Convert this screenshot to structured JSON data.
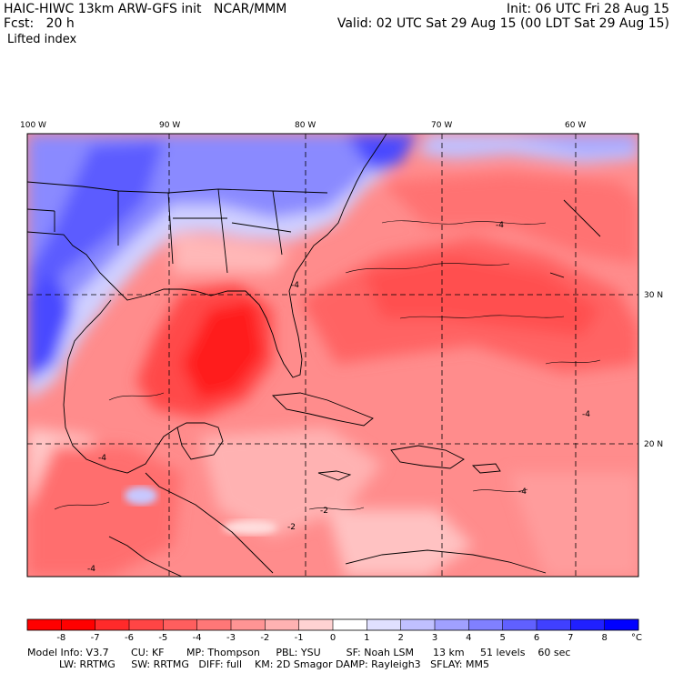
{
  "header": {
    "title": "HAIC-HIWC 13km ARW-GFS init   NCAR/MMM",
    "init": "Init: 06 UTC Fri 28 Aug 15",
    "forecast": "Fcst:   20 h",
    "valid": "Valid: 02 UTC Sat 29 Aug 15 (00 LDT Sat 29 Aug 15)",
    "field": "Lifted index"
  },
  "map": {
    "lon_labels": [
      "100 W",
      "90 W",
      "80 W",
      "70 W",
      "60 W"
    ],
    "lat_labels": [
      "30 N",
      "20 N"
    ],
    "contour_labels": [
      "-4",
      "-4",
      "-4",
      "-4",
      "-4",
      "-2",
      "-2",
      "-4"
    ]
  },
  "colorbar": {
    "ticks": [
      "-8",
      "-7",
      "-6",
      "-5",
      "-4",
      "-3",
      "-2",
      "-1",
      "0",
      "1",
      "2",
      "3",
      "4",
      "5",
      "6",
      "7",
      "8"
    ],
    "unit": "°C",
    "colors": [
      "#ff0000",
      "#ff2a2a",
      "#ff4545",
      "#ff5e5e",
      "#ff7777",
      "#ff9494",
      "#ffb2b2",
      "#ffd2d2",
      "#ffffff",
      "#e0e0ff",
      "#c0c0ff",
      "#a0a0ff",
      "#8080ff",
      "#6060ff",
      "#4040ff",
      "#2020ff",
      "#0000ff"
    ]
  },
  "footer": {
    "line1": "Model Info: V3.7       CU: KF       MP: Thompson     PBL: YSU        SF: Noah LSM      13 km     51 levels    60 sec",
    "line2": "          LW: RRTMG     SW: RRTMG   DIFF: full    KM: 2D Smagor DAMP: Rayleigh3   SFLAY: MM5"
  }
}
